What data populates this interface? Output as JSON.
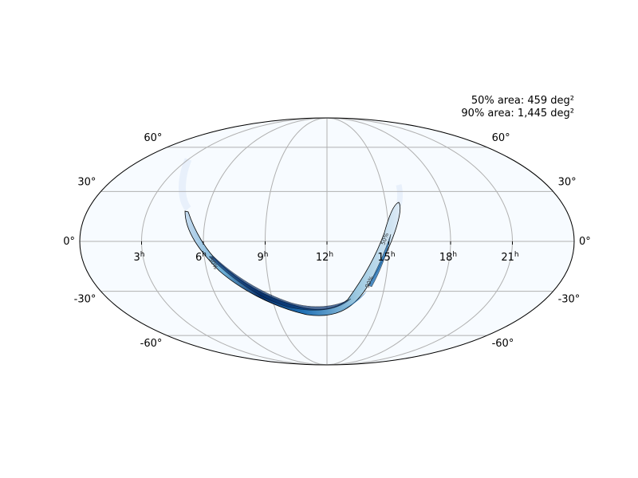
{
  "colors": {
    "background": "#f7fbff",
    "grid": "#b0b0b0",
    "outline": "#000000",
    "prob_low": "#c6dbef",
    "prob_mid": "#6baed6",
    "prob_high": "#2171b5",
    "prob_peak": "#08306b"
  },
  "projection": "mollweide",
  "area_summary": {
    "line50": "50% area: 459 deg²",
    "line90": "90% area: 1,445 deg²"
  },
  "ra_ticks": [
    {
      "hours": 21,
      "label": "21",
      "sup": "h"
    },
    {
      "hours": 18,
      "label": "18",
      "sup": "h"
    },
    {
      "hours": 15,
      "label": "15",
      "sup": "h"
    },
    {
      "hours": 12,
      "label": "12",
      "sup": "h"
    },
    {
      "hours": 9,
      "label": "9",
      "sup": "h"
    },
    {
      "hours": 6,
      "label": "6",
      "sup": "h"
    },
    {
      "hours": 3,
      "label": "3",
      "sup": "h"
    }
  ],
  "dec_ticks": [
    {
      "deg": 60,
      "label": "60°"
    },
    {
      "deg": 30,
      "label": "30°"
    },
    {
      "deg": 0,
      "label": "0°"
    },
    {
      "deg": -30,
      "label": "-30°"
    },
    {
      "deg": -60,
      "label": "-60°"
    }
  ],
  "contour_labels": [
    {
      "text": "50%"
    },
    {
      "text": "50%"
    },
    {
      "text": "90%"
    }
  ]
}
